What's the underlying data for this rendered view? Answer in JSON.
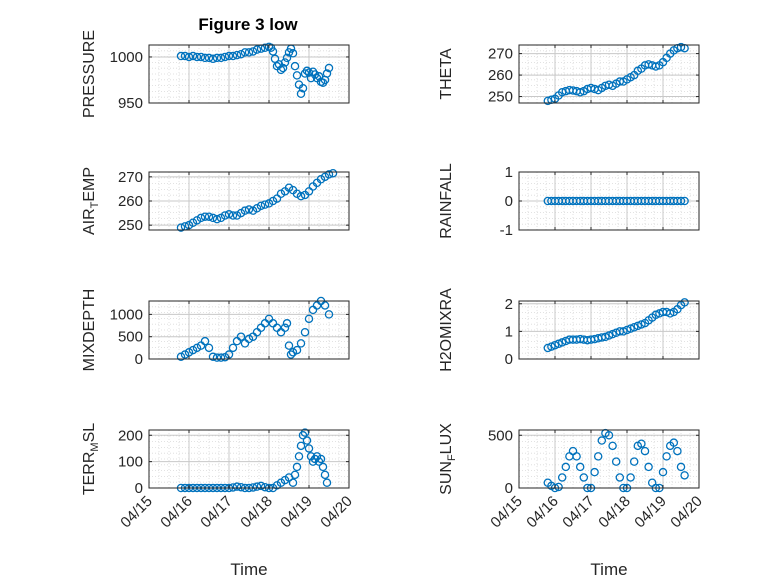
{
  "figure_title": "Figure 3 low",
  "chart_data": [
    {
      "type": "scatter",
      "ylabel": "PRESSURE",
      "xlim": [
        0,
        5
      ],
      "ylim": [
        950,
        1013
      ],
      "yticks": [
        950,
        1000
      ],
      "ytick_labels": [
        "950",
        "1000"
      ],
      "x": [
        0.8,
        0.9,
        1.0,
        1.1,
        1.2,
        1.3,
        1.4,
        1.5,
        1.6,
        1.7,
        1.8,
        1.9,
        2.0,
        2.1,
        2.2,
        2.3,
        2.4,
        2.5,
        2.6,
        2.7,
        2.8,
        2.9,
        3.0,
        3.05,
        3.1,
        3.15,
        3.2,
        3.25,
        3.3,
        3.35,
        3.4,
        3.45,
        3.5,
        3.55,
        3.6,
        3.65,
        3.7,
        3.75,
        3.8,
        3.85,
        3.9,
        3.95,
        4.0,
        4.05,
        4.1,
        4.15,
        4.2,
        4.25,
        4.3,
        4.35,
        4.4,
        4.45,
        4.5
      ],
      "y": [
        1001,
        1001,
        1000,
        1001,
        1000,
        1000,
        999,
        999,
        998,
        999,
        999,
        1000,
        1001,
        1001,
        1002,
        1003,
        1005,
        1005,
        1006,
        1008,
        1009,
        1010,
        1011,
        1010,
        1006,
        998,
        990,
        992,
        986,
        988,
        994,
        999,
        1005,
        1009,
        1004,
        990,
        980,
        970,
        960,
        966,
        982,
        985,
        983,
        977,
        984,
        981,
        977,
        979,
        973,
        972,
        975,
        982,
        988
      ]
    },
    {
      "type": "scatter",
      "ylabel": "THETA",
      "xlim": [
        0,
        5
      ],
      "ylim": [
        247,
        274
      ],
      "yticks": [
        250,
        260,
        270
      ],
      "ytick_labels": [
        "250",
        "260",
        "270"
      ],
      "x": [
        0.8,
        0.9,
        1.0,
        1.1,
        1.2,
        1.3,
        1.4,
        1.5,
        1.6,
        1.7,
        1.8,
        1.9,
        2.0,
        2.1,
        2.2,
        2.3,
        2.4,
        2.5,
        2.6,
        2.7,
        2.8,
        2.9,
        3.0,
        3.1,
        3.2,
        3.3,
        3.4,
        3.5,
        3.6,
        3.7,
        3.8,
        3.9,
        4.0,
        4.1,
        4.2,
        4.3,
        4.4,
        4.5,
        4.6
      ],
      "y": [
        248,
        248.5,
        249,
        250.5,
        252,
        252.5,
        253,
        252.8,
        252.5,
        252,
        252.5,
        253.5,
        254,
        253.5,
        253,
        254,
        255,
        255.5,
        255,
        256,
        257,
        257,
        258,
        259,
        260,
        262,
        263,
        264.5,
        265,
        264.5,
        264,
        264.5,
        266,
        268,
        270,
        271.5,
        272.5,
        273,
        272.5
      ]
    },
    {
      "type": "scatter",
      "ylabel": "AIR_TEMP",
      "ylabel_parts": [
        "AIR",
        "T",
        "EMP"
      ],
      "xlim": [
        0,
        5
      ],
      "ylim": [
        248,
        272
      ],
      "yticks": [
        250,
        260,
        270
      ],
      "ytick_labels": [
        "250",
        "260",
        "270"
      ],
      "x": [
        0.8,
        0.9,
        1.0,
        1.1,
        1.2,
        1.3,
        1.4,
        1.5,
        1.6,
        1.7,
        1.8,
        1.9,
        2.0,
        2.1,
        2.2,
        2.3,
        2.4,
        2.5,
        2.6,
        2.7,
        2.8,
        2.9,
        3.0,
        3.1,
        3.2,
        3.3,
        3.4,
        3.5,
        3.6,
        3.7,
        3.8,
        3.9,
        4.0,
        4.1,
        4.2,
        4.3,
        4.4,
        4.5,
        4.6
      ],
      "y": [
        249,
        249.5,
        250,
        251,
        252,
        253,
        253.5,
        253.5,
        253,
        252.5,
        253,
        254,
        254.5,
        254,
        254,
        255,
        256,
        256.5,
        256,
        257,
        258,
        258.5,
        259,
        260,
        261,
        263,
        264,
        265.5,
        264.5,
        263,
        262,
        262.5,
        264,
        266,
        267.5,
        269,
        270,
        271,
        271.5
      ]
    },
    {
      "type": "scatter",
      "ylabel": "RAINFALL",
      "xlim": [
        0,
        5
      ],
      "ylim": [
        -1,
        1
      ],
      "yticks": [
        -1,
        0,
        1
      ],
      "ytick_labels": [
        "-1",
        "0",
        "1"
      ],
      "x": [
        0.8,
        0.9,
        1.0,
        1.1,
        1.2,
        1.3,
        1.4,
        1.5,
        1.6,
        1.7,
        1.8,
        1.9,
        2.0,
        2.1,
        2.2,
        2.3,
        2.4,
        2.5,
        2.6,
        2.7,
        2.8,
        2.9,
        3.0,
        3.1,
        3.2,
        3.3,
        3.4,
        3.5,
        3.6,
        3.7,
        3.8,
        3.9,
        4.0,
        4.1,
        4.2,
        4.3,
        4.4,
        4.5,
        4.6
      ],
      "y": [
        0,
        0,
        0,
        0,
        0,
        0,
        0,
        0,
        0,
        0,
        0,
        0,
        0,
        0,
        0,
        0,
        0,
        0,
        0,
        0,
        0,
        0,
        0,
        0,
        0,
        0,
        0,
        0,
        0,
        0,
        0,
        0,
        0,
        0,
        0,
        0,
        0,
        0,
        0
      ]
    },
    {
      "type": "scatter",
      "ylabel": "MIXDEPTH",
      "xlim": [
        0,
        5
      ],
      "ylim": [
        0,
        1300
      ],
      "yticks": [
        0,
        500,
        1000
      ],
      "ytick_labels": [
        "0",
        "500",
        "1000"
      ],
      "x": [
        0.8,
        0.9,
        1.0,
        1.1,
        1.2,
        1.3,
        1.4,
        1.5,
        1.6,
        1.7,
        1.8,
        1.9,
        2.0,
        2.1,
        2.2,
        2.3,
        2.4,
        2.5,
        2.6,
        2.7,
        2.8,
        2.9,
        3.0,
        3.1,
        3.2,
        3.3,
        3.4,
        3.45,
        3.5,
        3.55,
        3.6,
        3.7,
        3.8,
        3.9,
        4.0,
        4.1,
        4.2,
        4.3,
        4.4,
        4.5
      ],
      "y": [
        50,
        100,
        150,
        200,
        250,
        300,
        400,
        250,
        50,
        30,
        30,
        40,
        100,
        250,
        400,
        500,
        350,
        450,
        500,
        600,
        700,
        800,
        900,
        800,
        700,
        600,
        700,
        800,
        300,
        100,
        150,
        200,
        350,
        600,
        900,
        1100,
        1200,
        1300,
        1200,
        1000
      ]
    },
    {
      "type": "scatter",
      "ylabel": "H2OMIXRA",
      "xlim": [
        0,
        5
      ],
      "ylim": [
        0,
        2.1
      ],
      "yticks": [
        0,
        1,
        2
      ],
      "ytick_labels": [
        "0",
        "1",
        "2"
      ],
      "x": [
        0.8,
        0.9,
        1.0,
        1.1,
        1.2,
        1.3,
        1.4,
        1.5,
        1.6,
        1.7,
        1.8,
        1.9,
        2.0,
        2.1,
        2.2,
        2.3,
        2.4,
        2.5,
        2.6,
        2.7,
        2.8,
        2.9,
        3.0,
        3.1,
        3.2,
        3.3,
        3.4,
        3.5,
        3.6,
        3.7,
        3.8,
        3.9,
        4.0,
        4.1,
        4.2,
        4.3,
        4.4,
        4.5,
        4.6
      ],
      "y": [
        0.4,
        0.45,
        0.5,
        0.55,
        0.6,
        0.65,
        0.7,
        0.7,
        0.7,
        0.72,
        0.7,
        0.68,
        0.7,
        0.72,
        0.75,
        0.78,
        0.8,
        0.85,
        0.9,
        0.95,
        1.0,
        1.0,
        1.05,
        1.1,
        1.15,
        1.2,
        1.25,
        1.3,
        1.4,
        1.5,
        1.6,
        1.65,
        1.7,
        1.7,
        1.65,
        1.7,
        1.8,
        1.95,
        2.05
      ]
    },
    {
      "type": "scatter",
      "ylabel": "TERR_MSL",
      "ylabel_parts": [
        "TERR",
        "M",
        "SL"
      ],
      "xlim": [
        0,
        5
      ],
      "ylim": [
        0,
        220
      ],
      "yticks": [
        0,
        100,
        200
      ],
      "ytick_labels": [
        "0",
        "100",
        "200"
      ],
      "x": [
        0.8,
        0.9,
        1.0,
        1.1,
        1.2,
        1.3,
        1.4,
        1.5,
        1.6,
        1.7,
        1.8,
        1.9,
        2.0,
        2.1,
        2.2,
        2.3,
        2.4,
        2.5,
        2.6,
        2.7,
        2.8,
        2.9,
        3.0,
        3.1,
        3.2,
        3.3,
        3.4,
        3.5,
        3.6,
        3.65,
        3.7,
        3.75,
        3.8,
        3.85,
        3.9,
        3.95,
        4.0,
        4.05,
        4.1,
        4.15,
        4.2,
        4.25,
        4.3,
        4.35,
        4.4,
        4.45
      ],
      "y": [
        0,
        0,
        0,
        0,
        0,
        0,
        0,
        0,
        0,
        0,
        0,
        0,
        0,
        2,
        5,
        3,
        0,
        0,
        2,
        5,
        8,
        3,
        0,
        0,
        10,
        20,
        30,
        40,
        20,
        50,
        80,
        120,
        160,
        200,
        210,
        180,
        150,
        120,
        100,
        110,
        120,
        100,
        110,
        80,
        50,
        20
      ]
    },
    {
      "type": "scatter",
      "ylabel": "SUN_FLUX",
      "ylabel_parts": [
        "SUN",
        "F",
        "LUX"
      ],
      "xlim": [
        0,
        5
      ],
      "ylim": [
        0,
        550
      ],
      "yticks": [
        0,
        500
      ],
      "ytick_labels": [
        "0",
        "500"
      ],
      "x": [
        0.8,
        0.9,
        1.0,
        1.1,
        1.2,
        1.3,
        1.4,
        1.5,
        1.6,
        1.7,
        1.8,
        1.9,
        2.0,
        2.1,
        2.2,
        2.3,
        2.4,
        2.5,
        2.6,
        2.7,
        2.8,
        2.9,
        3.0,
        3.1,
        3.2,
        3.3,
        3.4,
        3.5,
        3.6,
        3.7,
        3.8,
        3.9,
        4.0,
        4.1,
        4.2,
        4.3,
        4.4,
        4.5,
        4.6
      ],
      "y": [
        50,
        20,
        0,
        10,
        100,
        200,
        300,
        350,
        300,
        200,
        100,
        0,
        0,
        150,
        300,
        450,
        520,
        500,
        400,
        250,
        100,
        0,
        0,
        100,
        250,
        400,
        420,
        350,
        200,
        50,
        0,
        0,
        150,
        300,
        400,
        430,
        350,
        200,
        120
      ]
    }
  ],
  "xlabel": "Time",
  "xtick_labels": [
    "04/15",
    "04/16",
    "04/17",
    "04/18",
    "04/19",
    "04/20"
  ],
  "marker_color": "#0072BD"
}
